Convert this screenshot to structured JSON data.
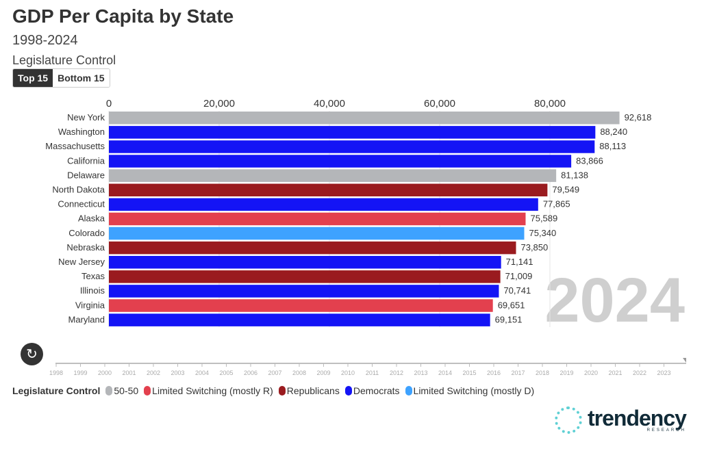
{
  "header": {
    "title": "GDP Per Capita by State",
    "subtitle": "1998-2024",
    "group_label": "Legislature Control"
  },
  "tabs": [
    {
      "label": "Top 15",
      "active": true
    },
    {
      "label": "Bottom 15",
      "active": false
    }
  ],
  "colors": {
    "50-50": "#b4b6b9",
    "Limited Switching (mostly R)": "#e3404e",
    "Republicans": "#9a1b1f",
    "Democrats": "#1414f5",
    "Limited Switching (mostly D)": "#3ea2ff"
  },
  "chart_data": {
    "type": "bar",
    "orientation": "horizontal",
    "title": "GDP Per Capita by State",
    "year_watermark": "2024",
    "xlim": [
      0,
      100000
    ],
    "xticks": [
      0,
      20000,
      40000,
      60000,
      80000
    ],
    "xtick_labels": [
      "0",
      "20,000",
      "40,000",
      "60,000",
      "80,000"
    ],
    "categories": [
      "New York",
      "Washington",
      "Massachusetts",
      "California",
      "Delaware",
      "North Dakota",
      "Connecticut",
      "Alaska",
      "Colorado",
      "Nebraska",
      "New Jersey",
      "Texas",
      "Illinois",
      "Virginia",
      "Maryland"
    ],
    "values": [
      92618,
      88240,
      88113,
      83866,
      81138,
      79549,
      77865,
      75589,
      75340,
      73850,
      71141,
      71009,
      70741,
      69651,
      69151
    ],
    "value_labels": [
      "92,618",
      "88,240",
      "88,113",
      "83,866",
      "81,138",
      "79,549",
      "77,865",
      "75,589",
      "75,340",
      "73,850",
      "71,141",
      "71,009",
      "70,741",
      "69,651",
      "69,151"
    ],
    "groups": [
      "50-50",
      "Democrats",
      "Democrats",
      "Democrats",
      "50-50",
      "Republicans",
      "Democrats",
      "Limited Switching (mostly R)",
      "Limited Switching (mostly D)",
      "Republicans",
      "Democrats",
      "Republicans",
      "Democrats",
      "Limited Switching (mostly R)",
      "Democrats"
    ],
    "legend": {
      "title": "Legislature Control",
      "entries": [
        "50-50",
        "Limited Switching (mostly R)",
        "Republicans",
        "Democrats",
        "Limited Switching (mostly D)"
      ],
      "placement": "bottom-left"
    }
  },
  "timeline": {
    "years": [
      "1998",
      "1999",
      "2000",
      "2001",
      "2002",
      "2003",
      "2004",
      "2005",
      "2006",
      "2007",
      "2008",
      "2009",
      "2010",
      "2011",
      "2012",
      "2013",
      "2014",
      "2015",
      "2016",
      "2017",
      "2018",
      "2019",
      "2020",
      "2021",
      "2022",
      "2023"
    ],
    "current": "2024"
  },
  "controls": {
    "replay_icon": "↻"
  },
  "logo": {
    "name": "trendency",
    "tagline": "RESEARCH"
  }
}
